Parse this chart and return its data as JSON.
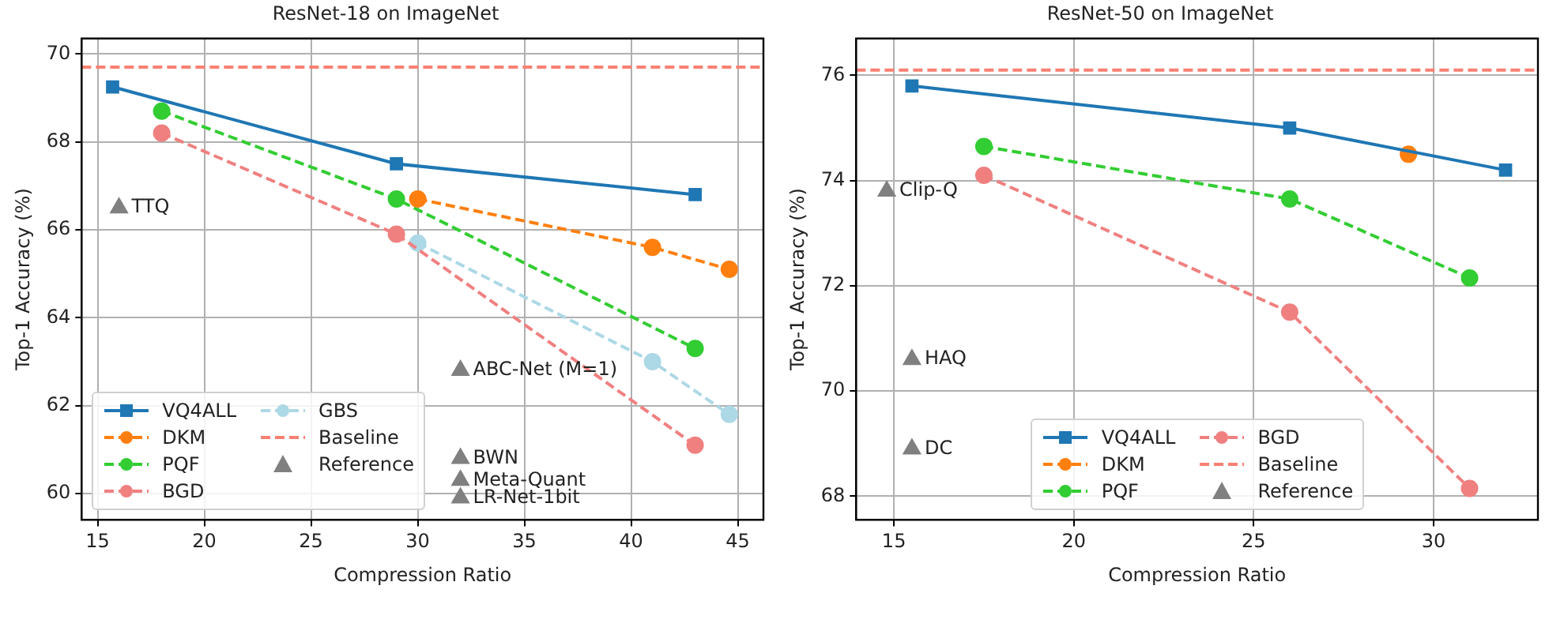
{
  "chart_data": [
    {
      "type": "line",
      "title": "ResNet-18 on ImageNet",
      "xlabel": "Compression Ratio",
      "ylabel": "Top-1 Accuracy (%)",
      "xlim": [
        14.25,
        46.2
      ],
      "xticks": [
        15,
        20,
        25,
        30,
        35,
        40,
        45
      ],
      "ylim": [
        59.4,
        70.35
      ],
      "yticks": [
        60,
        62,
        64,
        66,
        68,
        70
      ],
      "grid": true,
      "legend": "bottom left",
      "series": [
        {
          "name": "VQ4ALL",
          "color": "#1f77b4",
          "marker": "square",
          "line_style": "solid",
          "x": [
            15.7,
            29,
            43
          ],
          "values": [
            69.25,
            67.5,
            66.8
          ]
        },
        {
          "name": "DKM",
          "color": "#ff7f0e",
          "marker": "circle",
          "line_style": "dashed",
          "x": [
            30,
            41,
            44.6
          ],
          "values": [
            66.7,
            65.6,
            65.1
          ]
        },
        {
          "name": "PQF",
          "color": "#32cd32",
          "marker": "circle",
          "line_style": "dashed",
          "x": [
            18,
            29,
            43
          ],
          "values": [
            68.7,
            66.7,
            63.3
          ]
        },
        {
          "name": "BGD",
          "color": "#f08080",
          "marker": "circle",
          "line_style": "dashed",
          "x": [
            18,
            29,
            43
          ],
          "values": [
            68.2,
            65.9,
            61.1
          ]
        },
        {
          "name": "GBS",
          "color": "#add8e6",
          "marker": "circle",
          "line_style": "dashed",
          "x": [
            30,
            41,
            44.6
          ],
          "values": [
            65.7,
            63.0,
            61.8
          ]
        },
        {
          "name": "Reference",
          "type": "scatter",
          "color": "#808080",
          "marker": "triangle",
          "x": [
            16,
            32,
            32,
            32,
            32
          ],
          "values": [
            66.5,
            62.8,
            60.8,
            60.3,
            59.9
          ]
        }
      ],
      "ref_lines": [
        {
          "axis": "y",
          "value": 69.7,
          "label": "Baseline",
          "color": "#fa8072",
          "line_style": "dashed"
        }
      ],
      "annotations": [
        {
          "text": "TTQ",
          "x": 16,
          "y": 66.5
        },
        {
          "text": "ABC-Net (M=1)",
          "x": 32,
          "y": 62.8
        },
        {
          "text": "BWN",
          "x": 32,
          "y": 60.8
        },
        {
          "text": "Meta-Quant",
          "x": 32,
          "y": 60.3
        },
        {
          "text": "LR-Net-1bit",
          "x": 32,
          "y": 59.9
        }
      ]
    },
    {
      "type": "line",
      "title": "ResNet-50 on ImageNet",
      "xlabel": "Compression Ratio",
      "ylabel": "Top-1 Accuracy (%)",
      "xlim": [
        13.95,
        32.9
      ],
      "xticks": [
        15,
        20,
        25,
        30
      ],
      "ylim": [
        67.55,
        76.7
      ],
      "yticks": [
        68,
        70,
        72,
        74,
        76
      ],
      "grid": true,
      "legend": "bottom",
      "series": [
        {
          "name": "VQ4ALL",
          "color": "#1f77b4",
          "marker": "square",
          "line_style": "solid",
          "x": [
            15.5,
            26,
            32
          ],
          "values": [
            75.8,
            75.0,
            74.2
          ]
        },
        {
          "name": "DKM",
          "color": "#ff7f0e",
          "marker": "circle",
          "line_style": "dashed",
          "x": [
            29.3
          ],
          "values": [
            74.5
          ]
        },
        {
          "name": "PQF",
          "color": "#32cd32",
          "marker": "circle",
          "line_style": "dashed",
          "x": [
            17.5,
            26,
            31
          ],
          "values": [
            74.65,
            73.65,
            72.15
          ]
        },
        {
          "name": "BGD",
          "color": "#f08080",
          "marker": "circle",
          "line_style": "dashed",
          "x": [
            17.5,
            26,
            31
          ],
          "values": [
            74.1,
            71.5,
            68.15
          ]
        },
        {
          "name": "Reference",
          "type": "scatter",
          "color": "#808080",
          "marker": "triangle",
          "x": [
            14.8,
            15.5,
            15.5
          ],
          "values": [
            73.8,
            70.6,
            68.9
          ]
        }
      ],
      "ref_lines": [
        {
          "axis": "y",
          "value": 76.1,
          "label": "Baseline",
          "color": "#fa8072",
          "line_style": "dashed"
        }
      ],
      "annotations": [
        {
          "text": "Clip-Q",
          "x": 14.8,
          "y": 73.8
        },
        {
          "text": "HAQ",
          "x": 15.5,
          "y": 70.6
        },
        {
          "text": "DC",
          "x": 15.5,
          "y": 68.9
        }
      ]
    }
  ]
}
